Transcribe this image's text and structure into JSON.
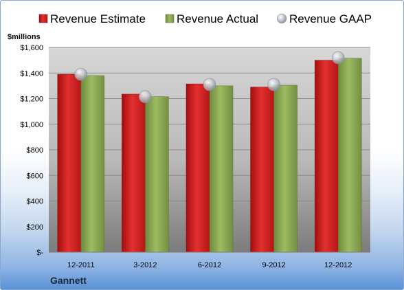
{
  "chart_data": {
    "type": "bar",
    "unit_label": "$millions",
    "company": "Gannett",
    "categories": [
      "12-2011",
      "3-2012",
      "6-2012",
      "9-2012",
      "12-2012"
    ],
    "series": [
      {
        "name": "Revenue Estimate",
        "kind": "bar",
        "color": "#d42020",
        "values": [
          1390,
          1235,
          1315,
          1290,
          1500
        ]
      },
      {
        "name": "Revenue Actual",
        "kind": "bar",
        "color": "#8fae58",
        "values": [
          1380,
          1215,
          1300,
          1305,
          1515
        ]
      },
      {
        "name": "Revenue GAAP",
        "kind": "marker",
        "color": "#b8bcc4",
        "values": [
          1390,
          1215,
          1310,
          1310,
          1520
        ]
      }
    ],
    "ylim": [
      0,
      1600
    ],
    "yticks": [
      0,
      200,
      400,
      600,
      800,
      1000,
      1200,
      1400,
      1600
    ],
    "ytick_labels": [
      "$-",
      "$200",
      "$400",
      "$600",
      "$800",
      "$1,000",
      "$1,200",
      "$1,400",
      "$1,600"
    ],
    "grid": true,
    "legend_position": "top"
  }
}
